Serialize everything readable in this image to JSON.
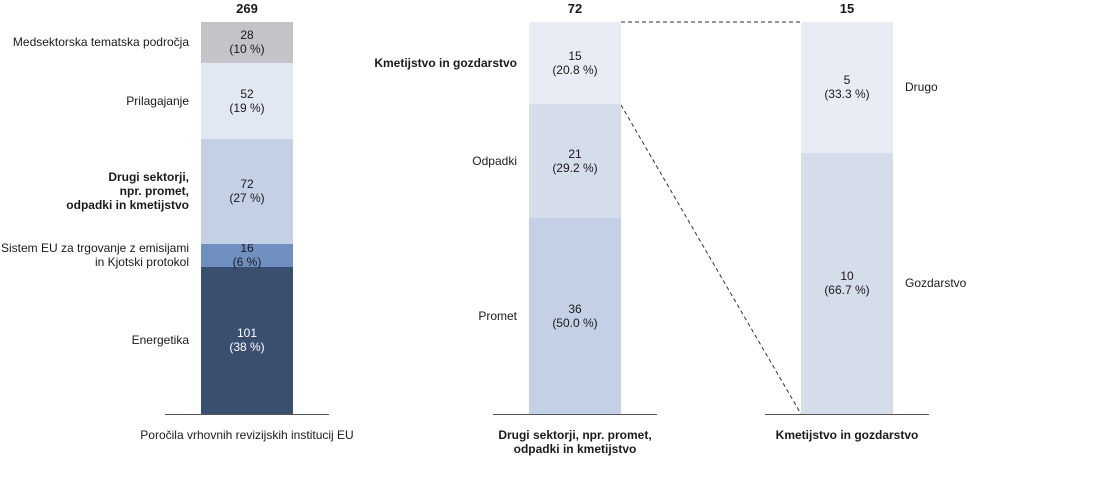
{
  "chart_data": [
    {
      "type": "stacked-bar",
      "total": 269,
      "xlabel": "Poročila vrhovnih revizijskih institucij EU",
      "xlabel_bold": false,
      "label_side": "left",
      "highlight_index": 2,
      "categories": [
        "Energetika",
        "Sistem EU za trgovanje z emisijami\nin Kjotski protokol",
        "Drugi sektorji,\nnpr. promet,\nodpadki in kmetijstvo",
        "Prilagajanje",
        "Medsektorska tematska področja"
      ],
      "values": [
        101,
        16,
        72,
        52,
        28
      ],
      "share_labels": [
        "(38 %)",
        "(6 %)",
        "(27 %)",
        "(19 %)",
        "(10 %)"
      ],
      "colors": [
        "#3a4f70",
        "#6e8fbf",
        "#c3d0e5",
        "#e2e8f3",
        "#c4c4c8"
      ],
      "ylim": [
        0,
        269
      ]
    },
    {
      "type": "stacked-bar",
      "total": 72,
      "xlabel": "Drugi sektorji, npr. promet,\nodpadki in kmetijstvo",
      "xlabel_bold": true,
      "label_side": "left",
      "highlight_index": 2,
      "categories": [
        "Promet",
        "Odpadki",
        "Kmetijstvo in gozdarstvo"
      ],
      "values": [
        36,
        21,
        15
      ],
      "share_labels": [
        "(50.0 %)",
        "(29.2 %)",
        "(20.8 %)"
      ],
      "colors": [
        "#c3d0e5",
        "#d5dcea",
        "#e8ecf5"
      ],
      "ylim": [
        0,
        72
      ]
    },
    {
      "type": "stacked-bar",
      "total": 15,
      "xlabel": "Kmetijstvo in gozdarstvo",
      "xlabel_bold": true,
      "label_side": "right",
      "highlight_index": null,
      "categories": [
        "Gozdarstvo",
        "Drugo"
      ],
      "values": [
        10,
        5
      ],
      "share_labels": [
        "(66.7 %)",
        "(33.3 %)"
      ],
      "colors": [
        "#d5dcea",
        "#e8ecf5"
      ],
      "ylim": [
        0,
        15
      ]
    }
  ]
}
